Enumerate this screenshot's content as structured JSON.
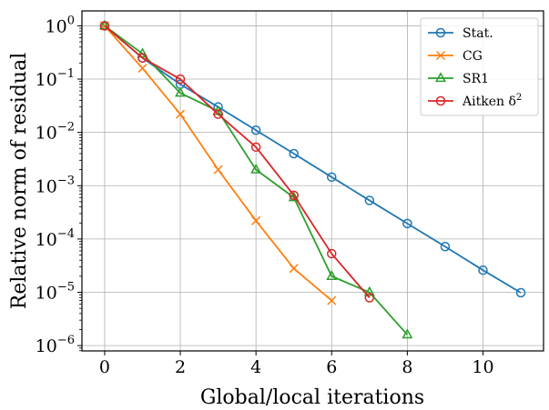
{
  "chart_data": {
    "type": "line",
    "title": "",
    "xlabel": "Global/local iterations",
    "ylabel": "Relative norm of residual",
    "yscale": "log",
    "xlim": [
      -0.6,
      11.6
    ],
    "ylim_log10": [
      -6.1,
      0.28
    ],
    "grid": true,
    "legend_placement": "top-right",
    "x_ticks": [
      {
        "value": 0,
        "label": "0"
      },
      {
        "value": 2,
        "label": "2"
      },
      {
        "value": 4,
        "label": "4"
      },
      {
        "value": 6,
        "label": "6"
      },
      {
        "value": 8,
        "label": "8"
      },
      {
        "value": 10,
        "label": "10"
      }
    ],
    "y_ticks": [
      {
        "exp": 0,
        "base": "10",
        "power": "0"
      },
      {
        "exp": -1,
        "base": "10",
        "power": "−1"
      },
      {
        "exp": -2,
        "base": "10",
        "power": "−2"
      },
      {
        "exp": -3,
        "base": "10",
        "power": "−3"
      },
      {
        "exp": -4,
        "base": "10",
        "power": "−4"
      },
      {
        "exp": -5,
        "base": "10",
        "power": "−5"
      },
      {
        "exp": -6,
        "base": "10",
        "power": "−6"
      }
    ],
    "series": [
      {
        "name": "Stat.",
        "label_text": "Stat.",
        "label_sup": "",
        "color": "#1f77b4",
        "marker": "circle",
        "x": [
          0,
          1,
          2,
          3,
          4,
          5,
          6,
          7,
          8,
          9,
          10,
          11
        ],
        "y": [
          1.0,
          0.25,
          0.08,
          0.03,
          0.011,
          0.004,
          0.00145,
          0.00053,
          0.000195,
          7.2e-05,
          2.6e-05,
          9.8e-06
        ]
      },
      {
        "name": "CG",
        "label_text": "CG",
        "label_sup": "",
        "color": "#ff7f0e",
        "marker": "x",
        "x": [
          0,
          1,
          2,
          3,
          4,
          5,
          6
        ],
        "y": [
          1.0,
          0.16,
          0.022,
          0.002,
          0.00022,
          2.8e-05,
          7e-06
        ]
      },
      {
        "name": "SR1",
        "label_text": "SR1",
        "label_sup": "",
        "color": "#2ca02c",
        "marker": "triangle",
        "x": [
          0,
          1,
          2,
          3,
          4,
          5,
          6,
          7,
          8
        ],
        "y": [
          1.0,
          0.3,
          0.055,
          0.025,
          0.002,
          0.0006,
          2e-05,
          1e-05,
          1.6e-06
        ]
      },
      {
        "name": "Aitken δ²",
        "label_text": "Aitken δ",
        "label_sup": "2",
        "color": "#d62728",
        "marker": "circle",
        "x": [
          0,
          1,
          2,
          3,
          4,
          5,
          6,
          7
        ],
        "y": [
          1.0,
          0.25,
          0.1,
          0.022,
          0.0053,
          0.00066,
          5.3e-05,
          7.9e-06
        ]
      }
    ]
  }
}
